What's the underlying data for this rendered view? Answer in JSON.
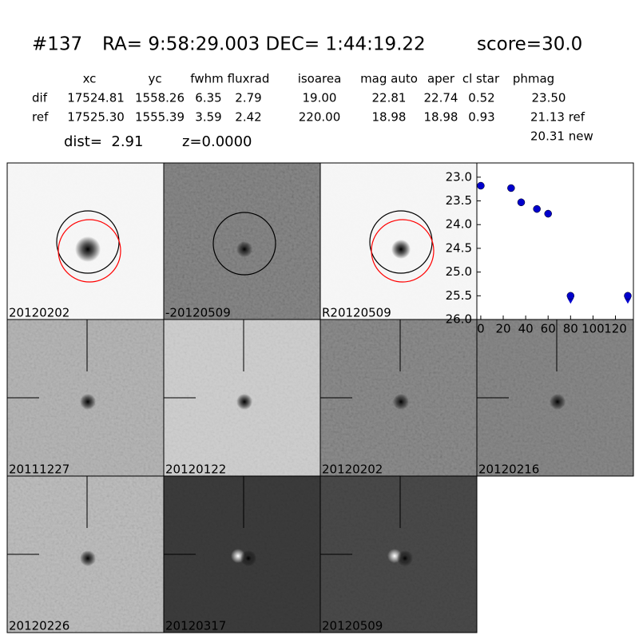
{
  "header": {
    "id": "#137",
    "coords": "RA= 9:58:29.003 DEC= 1:44:19.22",
    "score": "score=30.0"
  },
  "table": {
    "columns": [
      "xc",
      "yc",
      "fwhm",
      "fluxrad",
      "isoarea",
      "mag auto",
      "aper",
      "cl star",
      "phmag"
    ],
    "rows": [
      [
        "dif",
        "17524.81",
        "1558.26",
        "6.35",
        "2.79",
        "19.00",
        "22.81",
        "22.74",
        "0.52",
        "23.50"
      ],
      [
        "ref",
        "17525.30",
        "1555.39",
        "3.59",
        "2.42",
        "220.00",
        "18.98",
        "18.98",
        "0.93",
        "21.13 ref"
      ]
    ],
    "extra": "20.31 new"
  },
  "info": {
    "dist": "dist=  2.91",
    "z": "z=0.0000"
  },
  "stamps": [
    {
      "label": "20120202"
    },
    {
      "label": "-20120509"
    },
    {
      "label": "R20120509"
    },
    {
      "label": "20111227"
    },
    {
      "label": "20120122"
    },
    {
      "label": "20120202",
      "label_color": "#ff0000"
    },
    {
      "label": "20120216"
    },
    {
      "label": "20120226"
    },
    {
      "label": "20120317"
    },
    {
      "label": "20120509"
    }
  ],
  "chart_data": {
    "type": "scatter",
    "xlim": [
      -3.5,
      136
    ],
    "ylim": [
      26.0,
      22.7
    ],
    "xticks": [
      0,
      20,
      40,
      60,
      80,
      100,
      120
    ],
    "yticks": [
      {
        "value": 23,
        "label": "23.0"
      },
      {
        "value": 23.5,
        "label": "23.5"
      },
      {
        "value": 24,
        "label": "24.0"
      },
      {
        "value": 24.5,
        "label": "24.5"
      },
      {
        "value": 25,
        "label": "25.0"
      },
      {
        "value": 25.5,
        "label": "25.5"
      },
      {
        "value": 26,
        "label": "26.0"
      }
    ],
    "series": [
      {
        "color": "#0000cc",
        "x": [
          0,
          27,
          36,
          50,
          60
        ],
        "values": [
          23.18,
          23.23,
          23.53,
          23.67,
          23.77
        ],
        "errors": [
          0.05,
          0.04,
          0.08,
          0.08,
          0.08
        ]
      },
      {
        "color": "#0000cc",
        "upper_limit": true,
        "x": [
          80,
          131
        ],
        "values": [
          25.5,
          25.5
        ]
      }
    ]
  }
}
